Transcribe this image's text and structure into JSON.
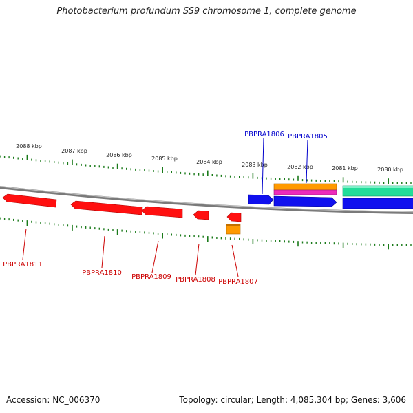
{
  "title": "Photobacterium profundum SS9 chromosome 1, complete genome",
  "footer": {
    "accession": "Accession: NC_006370",
    "summary": "Topology: circular; Length: 4,085,304 bp; Genes: 3,606"
  },
  "colors": {
    "forward_label": "#0000cc",
    "reverse_label": "#cc0000",
    "tick": "#1a7a1a",
    "backbone": "#7a7a7a",
    "red_gene": "#ff1010",
    "blue_gene": "#1010ee",
    "orange_gene": "#ff9a00",
    "magenta_gene": "#ee2bbb",
    "green_gene": "#22dd99"
  },
  "scale": {
    "unit": "kbp",
    "labels": [
      "2088 kbp",
      "2087 kbp",
      "2086 kbp",
      "2085 kbp",
      "2084 kbp",
      "2083 kbp",
      "2082 kbp",
      "2081 kbp",
      "2080 kbp"
    ]
  },
  "gene_labels": {
    "forward": [
      "PBPRA1806",
      "PBPRA1805"
    ],
    "reverse": [
      "PBPRA1811",
      "PBPRA1810",
      "PBPRA1809",
      "PBPRA1808",
      "PBPRA1807"
    ]
  },
  "genes": [
    {
      "strand": "reverse",
      "color": "red_gene",
      "label": "PBPRA1811"
    },
    {
      "strand": "reverse",
      "color": "red_gene",
      "label": "PBPRA1810"
    },
    {
      "strand": "reverse",
      "color": "red_gene",
      "label": "PBPRA1809"
    },
    {
      "strand": "reverse",
      "color": "red_gene",
      "label": "PBPRA1808"
    },
    {
      "strand": "reverse",
      "color": "red_gene",
      "label": "PBPRA1807"
    },
    {
      "strand": "reverse",
      "color": "orange_gene",
      "label": ""
    },
    {
      "strand": "forward",
      "color": "blue_gene",
      "label": "PBPRA1806"
    },
    {
      "strand": "forward",
      "color": "blue_gene",
      "label": "PBPRA1805"
    },
    {
      "strand": "forward",
      "color": "blue_gene",
      "label": ""
    },
    {
      "strand": "forward",
      "color": "orange_gene",
      "label": ""
    },
    {
      "strand": "forward",
      "color": "magenta_gene",
      "label": ""
    },
    {
      "strand": "forward",
      "color": "green_gene",
      "label": ""
    }
  ]
}
